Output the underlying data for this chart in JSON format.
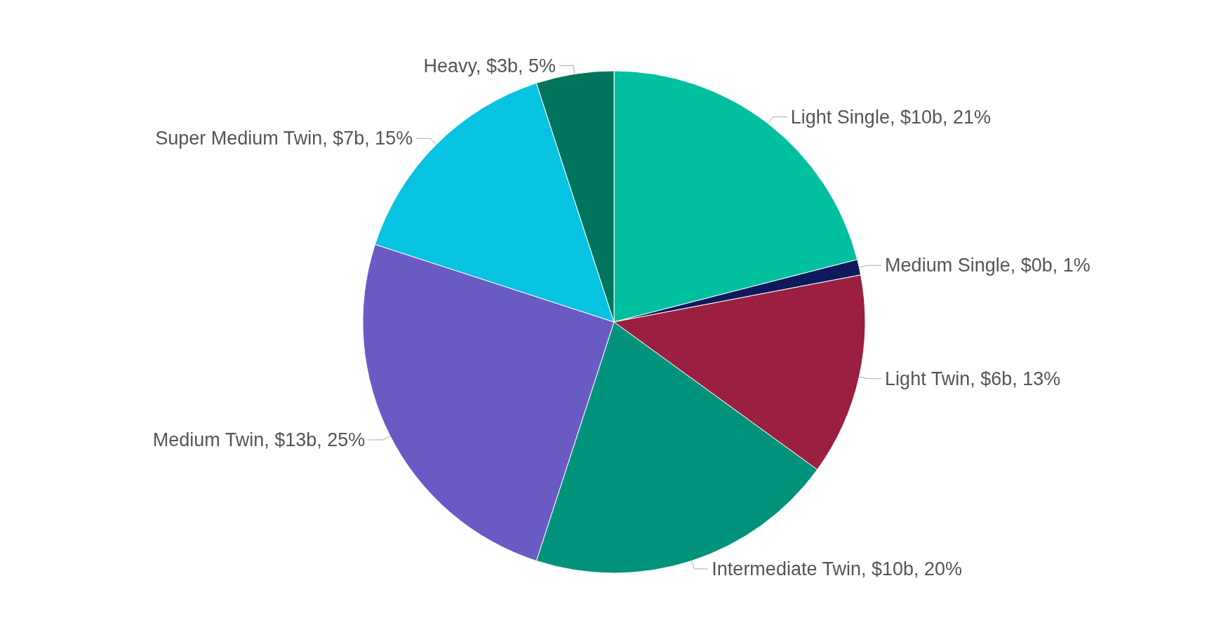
{
  "chart_data": {
    "type": "pie",
    "categories": [
      "Light Single",
      "Medium Single",
      "Light Twin",
      "Intermediate Twin",
      "Medium Twin",
      "Super Medium Twin",
      "Heavy"
    ],
    "values": [
      21,
      1,
      13,
      20,
      25,
      15,
      5
    ],
    "value_labels": [
      "$10b, 21%",
      "$0b, 1%",
      "$6b, 13%",
      "$10b, 20%",
      "$13b, 25%",
      "$7b, 15%",
      "$3b, 5%"
    ],
    "colors": [
      "#00c09f",
      "#0f1a5c",
      "#9b1f40",
      "#00927a",
      "#6a5ac4",
      "#07c2e0",
      "#00745c"
    ]
  }
}
